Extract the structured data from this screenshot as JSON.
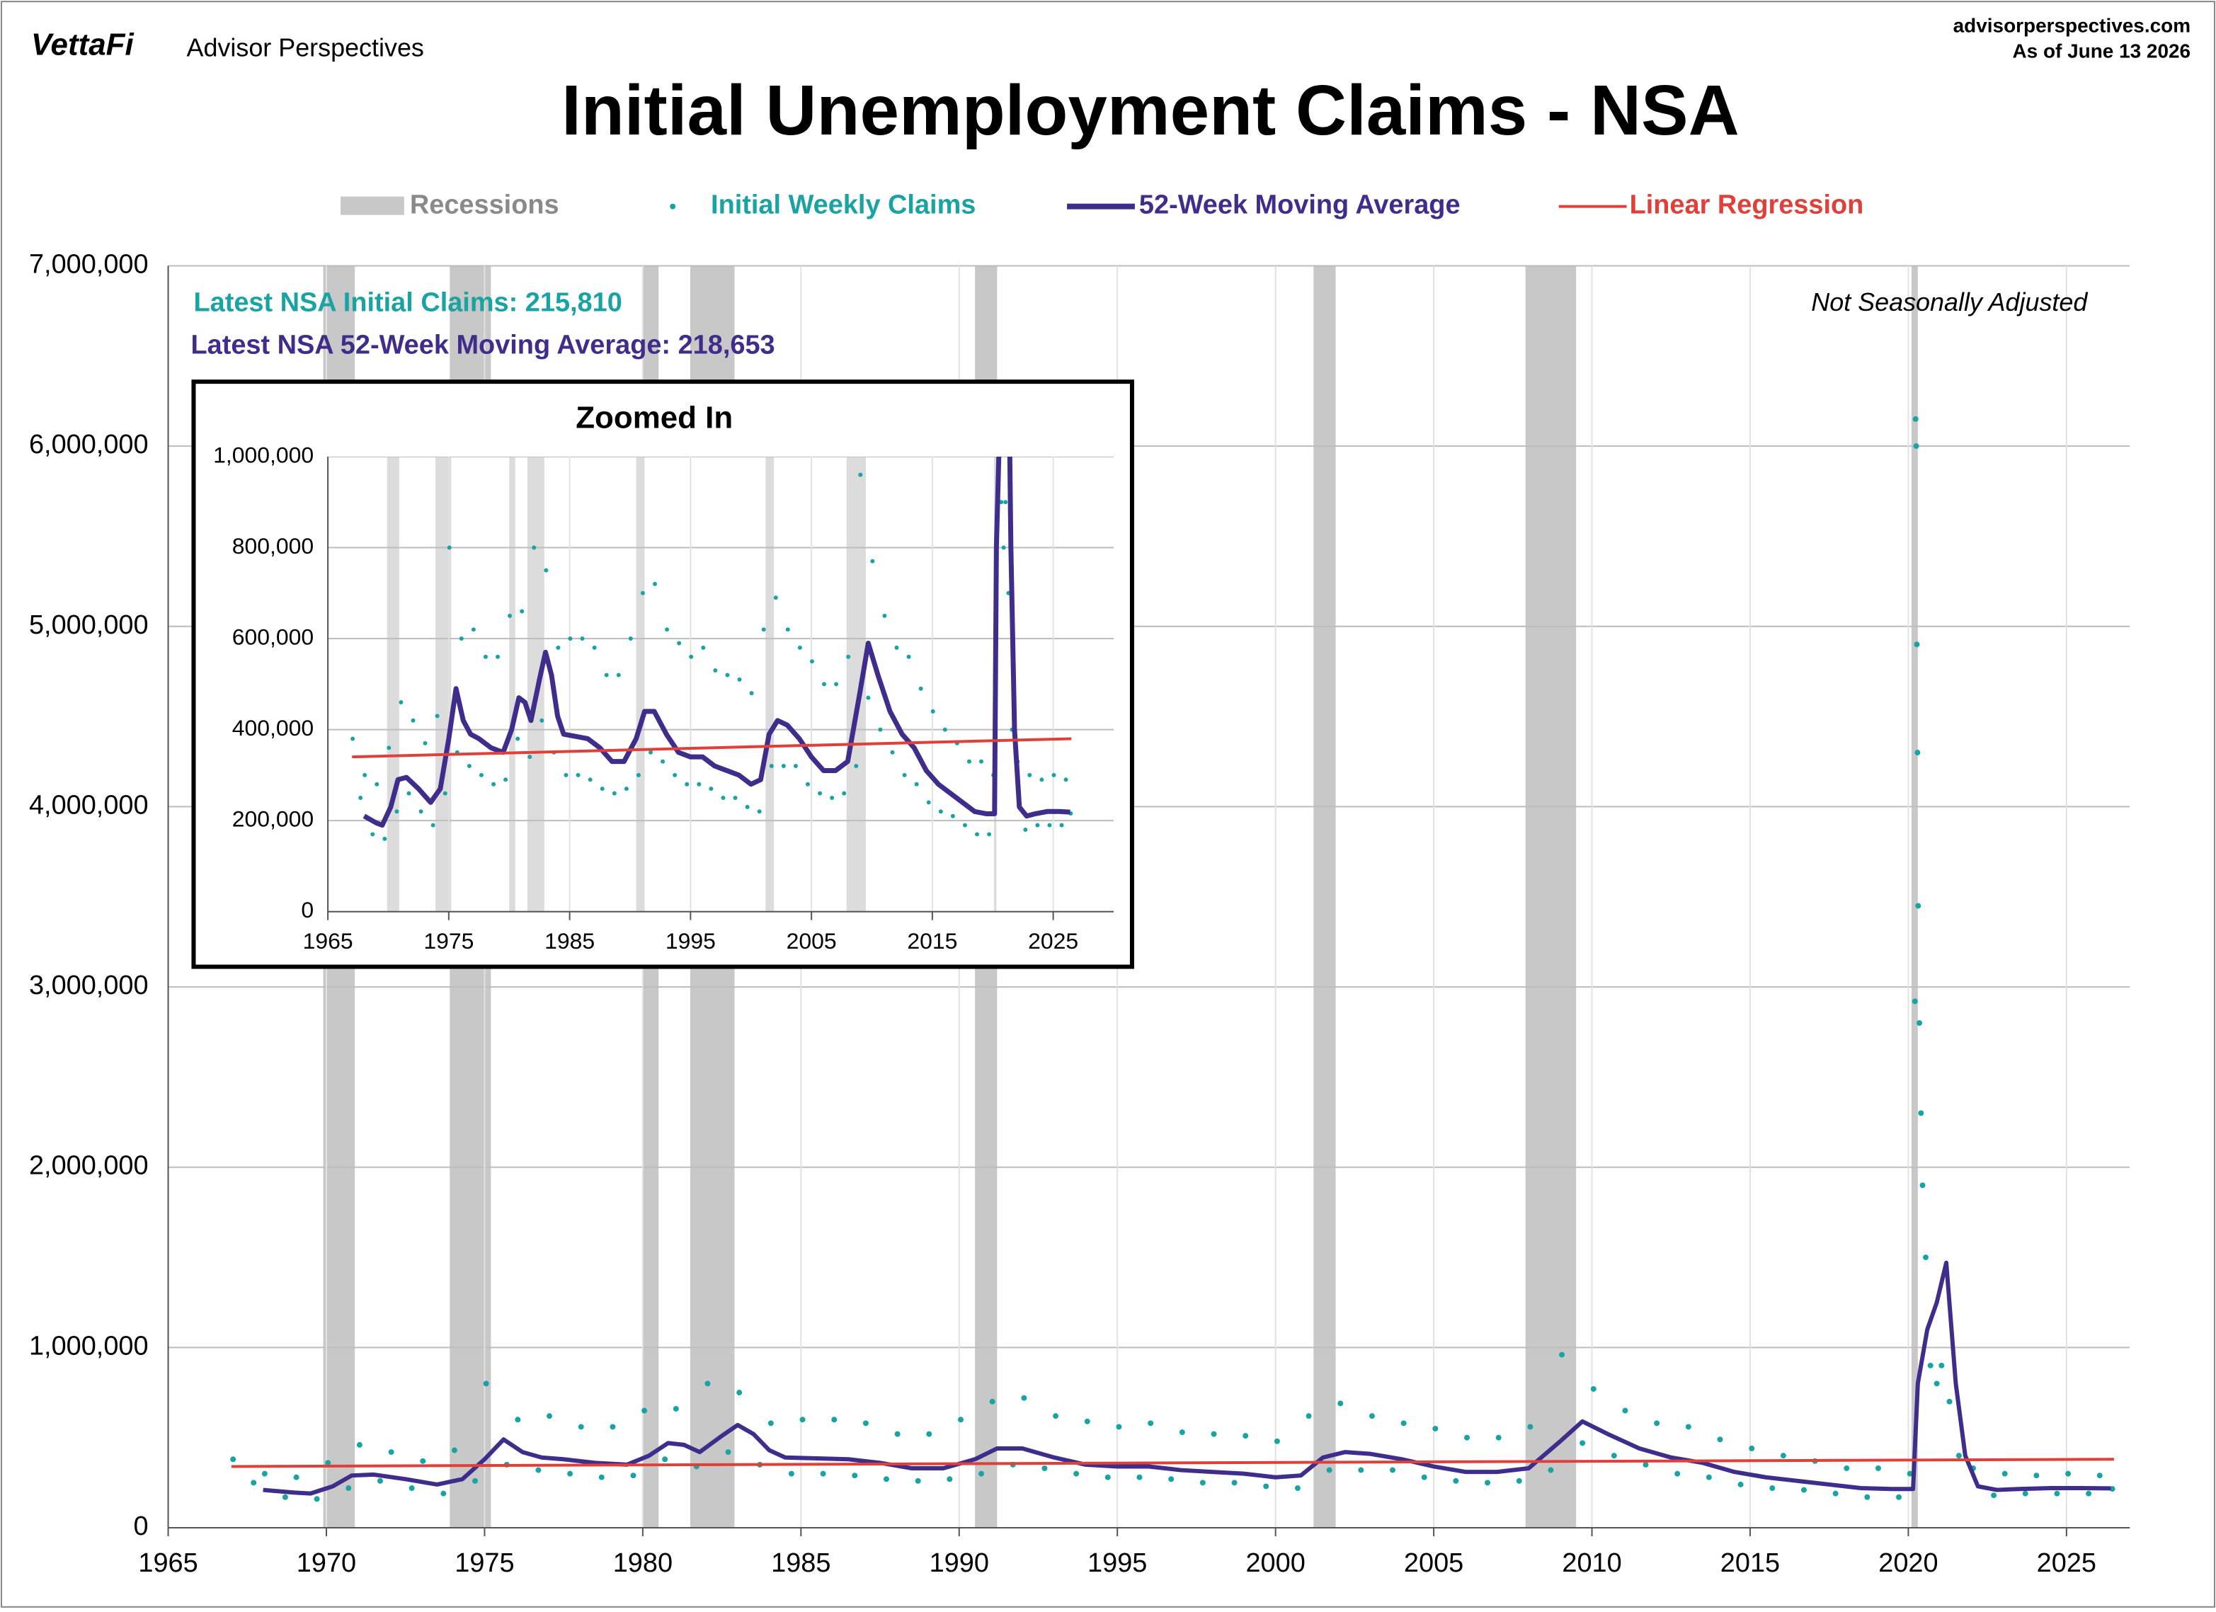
{
  "header": {
    "brand": "VettaFi",
    "publisher": "Advisor Perspectives",
    "site": "advisorperspectives.com",
    "date": "As of June 13 2026"
  },
  "chart_data": [
    {
      "type": "line",
      "title": "Initial Unemployment Claims - NSA",
      "annotations": [
        "Latest NSA Initial Claims: 215,810",
        "Latest NSA 52-Week Moving Average: 218,653",
        "Not Seasonally Adjusted"
      ],
      "recessions": {
        "name": "Recessions",
        "color": "#c8c8c8",
        "periods": [
          [
            1969.9,
            1970.9
          ],
          [
            1973.9,
            1975.2
          ],
          [
            1980.0,
            1980.5
          ],
          [
            1981.5,
            1982.9
          ],
          [
            1990.5,
            1991.2
          ],
          [
            2001.2,
            2001.9
          ],
          [
            2007.9,
            2009.5
          ],
          [
            2020.1,
            2020.3
          ]
        ]
      },
      "xlim": [
        1965,
        2027
      ],
      "xticks": [
        1965,
        1970,
        1975,
        1980,
        1985,
        1990,
        1995,
        2000,
        2005,
        2010,
        2015,
        2020,
        2025
      ],
      "ylim": [
        0,
        7000000
      ],
      "yticks": [
        0,
        {
          "value": 1000000,
          "label": "1,000,000"
        },
        {
          "value": 2000000,
          "label": "2,000,000"
        },
        {
          "value": 3000000,
          "label": "3,000,000"
        },
        {
          "value": 4000000,
          "label": "4,000,000"
        },
        {
          "value": 5000000,
          "label": "5,000,000"
        },
        {
          "value": 6000000,
          "label": "6,000,000"
        },
        {
          "value": 7000000,
          "label": "7,000,000"
        }
      ],
      "grid": true,
      "series": [
        {
          "name": "Initial Weekly Claims",
          "type": "scatter",
          "color": "#1aa3a3",
          "x": [
            1967.05,
            1967.7,
            1968.05,
            1968.7,
            1969.05,
            1969.7,
            1970.05,
            1970.7,
            1971.05,
            1971.7,
            1972.05,
            1972.7,
            1973.05,
            1973.7,
            1974.05,
            1974.7,
            1975.05,
            1975.7,
            1976.05,
            1976.7,
            1977.05,
            1977.7,
            1978.05,
            1978.7,
            1979.05,
            1979.7,
            1980.05,
            1980.7,
            1981.05,
            1981.7,
            1982.05,
            1982.7,
            1983.05,
            1983.7,
            1984.05,
            1984.7,
            1985.05,
            1985.7,
            1986.05,
            1986.7,
            1987.05,
            1987.7,
            1988.05,
            1988.7,
            1989.05,
            1989.7,
            1990.05,
            1990.7,
            1991.05,
            1991.7,
            1992.05,
            1992.7,
            1993.05,
            1993.7,
            1994.05,
            1994.7,
            1995.05,
            1995.7,
            1996.05,
            1996.7,
            1997.05,
            1997.7,
            1998.05,
            1998.7,
            1999.05,
            1999.7,
            2000.05,
            2000.7,
            2001.05,
            2001.7,
            2002.05,
            2002.7,
            2003.05,
            2003.7,
            2004.05,
            2004.7,
            2005.05,
            2005.7,
            2006.05,
            2006.7,
            2007.05,
            2007.7,
            2008.05,
            2008.7,
            2009.05,
            2009.7,
            2010.05,
            2010.7,
            2011.05,
            2011.7,
            2012.05,
            2012.7,
            2013.05,
            2013.7,
            2014.05,
            2014.7,
            2015.05,
            2015.7,
            2016.05,
            2016.7,
            2017.05,
            2017.7,
            2018.05,
            2018.7,
            2019.05,
            2019.7,
            2020.05,
            2020.21,
            2020.23,
            2020.25,
            2020.27,
            2020.29,
            2020.31,
            2020.35,
            2020.4,
            2020.45,
            2020.55,
            2020.7,
            2020.9,
            2021.05,
            2021.3,
            2021.6,
            2022.05,
            2022.7,
            2023.05,
            2023.7,
            2024.05,
            2024.7,
            2025.05,
            2025.7,
            2026.05,
            2026.45
          ],
          "values": [
            380000,
            250000,
            300000,
            170000,
            280000,
            160000,
            360000,
            220000,
            460000,
            260000,
            420000,
            220000,
            370000,
            190000,
            430000,
            260000,
            800000,
            350000,
            600000,
            320000,
            620000,
            300000,
            560000,
            280000,
            560000,
            290000,
            650000,
            380000,
            660000,
            340000,
            800000,
            420000,
            750000,
            350000,
            580000,
            300000,
            600000,
            300000,
            600000,
            290000,
            580000,
            270000,
            520000,
            260000,
            520000,
            270000,
            600000,
            300000,
            700000,
            350000,
            720000,
            330000,
            620000,
            300000,
            590000,
            280000,
            560000,
            280000,
            580000,
            270000,
            530000,
            250000,
            520000,
            250000,
            510000,
            230000,
            480000,
            220000,
            620000,
            320000,
            690000,
            320000,
            620000,
            320000,
            580000,
            280000,
            550000,
            260000,
            500000,
            250000,
            500000,
            260000,
            560000,
            320000,
            960000,
            470000,
            770000,
            400000,
            650000,
            350000,
            580000,
            300000,
            560000,
            280000,
            490000,
            240000,
            440000,
            220000,
            400000,
            210000,
            370000,
            190000,
            330000,
            170000,
            330000,
            170000,
            300000,
            2920000,
            6150000,
            6000000,
            4900000,
            4300000,
            3450000,
            2800000,
            2300000,
            1900000,
            1500000,
            900000,
            800000,
            900000,
            700000,
            400000,
            330000,
            180000,
            300000,
            190000,
            290000,
            190000,
            300000,
            190000,
            290000,
            215810
          ]
        },
        {
          "name": "52-Week Moving Average",
          "type": "line",
          "color": "#3f2d8c",
          "x": [
            1968,
            1969,
            1969.5,
            1970.2,
            1970.8,
            1971.5,
            1972.5,
            1973.5,
            1974.3,
            1975,
            1975.6,
            1976.2,
            1976.8,
            1977.5,
            1978.5,
            1979.5,
            1980.2,
            1980.8,
            1981.3,
            1981.8,
            1982.5,
            1983,
            1983.5,
            1984,
            1984.5,
            1985.5,
            1986.5,
            1987.5,
            1988.5,
            1989.5,
            1990.5,
            1991.2,
            1992,
            1993,
            1994,
            1995,
            1996,
            1997,
            1998,
            1999,
            2000,
            2000.8,
            2001.5,
            2002.2,
            2003,
            2004,
            2005,
            2006,
            2007,
            2008,
            2009,
            2009.7,
            2010.5,
            2011.5,
            2012.5,
            2013.5,
            2014.5,
            2015.5,
            2016.5,
            2017.5,
            2018.5,
            2019.5,
            2020.15,
            2020.3,
            2020.6,
            2020.9,
            2021.2,
            2021.5,
            2021.8,
            2022.2,
            2022.8,
            2023.5,
            2024.5,
            2025.5,
            2026.4
          ],
          "values": [
            210000,
            195000,
            190000,
            230000,
            290000,
            295000,
            270000,
            240000,
            270000,
            380000,
            490000,
            420000,
            390000,
            380000,
            360000,
            350000,
            400000,
            470000,
            460000,
            420000,
            510000,
            570000,
            520000,
            430000,
            390000,
            385000,
            380000,
            360000,
            330000,
            330000,
            380000,
            440000,
            440000,
            390000,
            350000,
            340000,
            340000,
            320000,
            310000,
            300000,
            280000,
            290000,
            390000,
            420000,
            410000,
            380000,
            340000,
            310000,
            310000,
            330000,
            480000,
            590000,
            520000,
            440000,
            390000,
            360000,
            310000,
            280000,
            260000,
            240000,
            220000,
            215000,
            215000,
            800000,
            1100000,
            1250000,
            1470000,
            800000,
            400000,
            230000,
            210000,
            215000,
            220000,
            220000,
            218653
          ]
        },
        {
          "name": "Linear Regression",
          "type": "line",
          "color": "#e0403a",
          "x": [
            1967,
            2026.5
          ],
          "values": [
            340000,
            380000
          ]
        }
      ]
    },
    {
      "type": "line",
      "title": "Zoomed In",
      "xlim": [
        1965,
        2030
      ],
      "xticks": [
        1965,
        1975,
        1985,
        1995,
        2005,
        2015,
        2025
      ],
      "ylim": [
        0,
        1000000
      ],
      "yticks": [
        0,
        {
          "value": 200000,
          "label": "200,000"
        },
        {
          "value": 400000,
          "label": "400,000"
        },
        {
          "value": 600000,
          "label": "600,000"
        },
        {
          "value": 800000,
          "label": "800,000"
        },
        {
          "value": 1000000,
          "label": "1,000,000"
        }
      ],
      "grid": true
    }
  ]
}
